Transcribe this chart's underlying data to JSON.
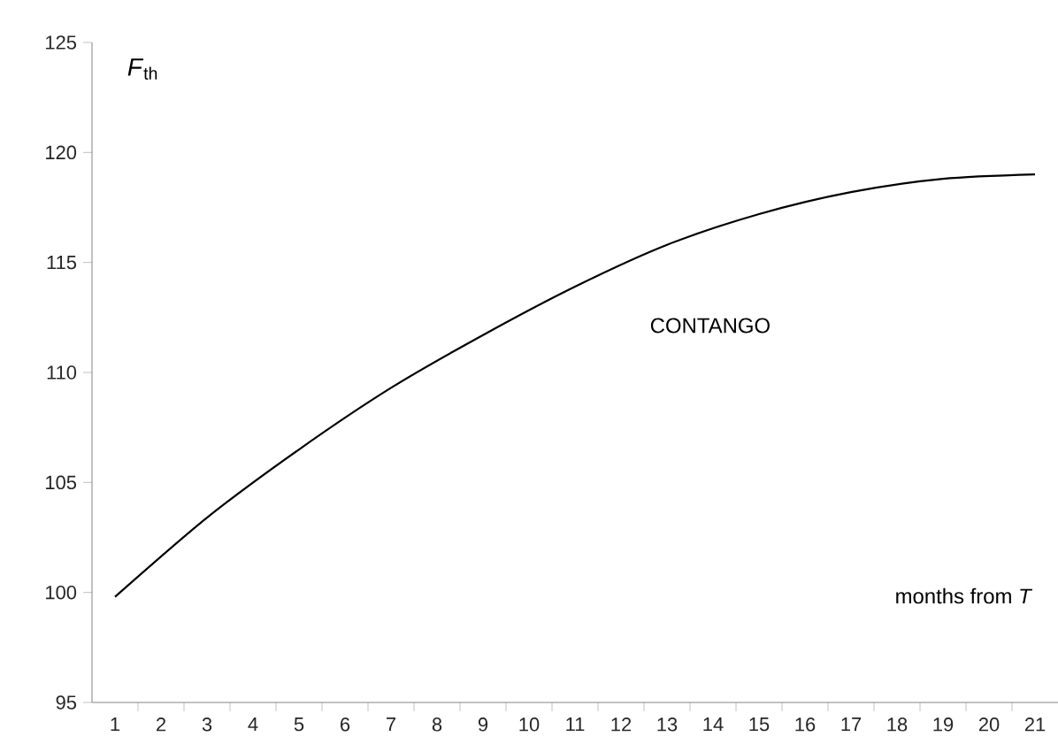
{
  "chart_data": {
    "type": "line",
    "ylabel": "*F*$_{th}$",
    "xlabel": "months from *T*",
    "annotations": [
      "CONTANGO"
    ],
    "x": [
      1,
      3,
      5,
      7,
      9,
      11,
      13,
      15,
      17,
      19,
      21
    ],
    "series": [
      {
        "color": "#000000",
        "values": [
          99.8,
          103.4,
          106.5,
          109.3,
          111.7,
          113.9,
          115.8,
          117.2,
          118.2,
          118.8,
          119.0
        ]
      }
    ],
    "xlim": [
      0.5,
      21.5
    ],
    "xticks": [
      1,
      2,
      3,
      4,
      5,
      6,
      7,
      8,
      9,
      10,
      11,
      12,
      13,
      14,
      15,
      16,
      17,
      18,
      19,
      20,
      21,
      {
        "value": 1.5,
        "label": null
      },
      {
        "value": 2.5,
        "label": null
      },
      {
        "value": 3.5,
        "label": null
      },
      {
        "value": 4.5,
        "label": null
      },
      {
        "value": 5.5,
        "label": null
      },
      {
        "value": 6.5,
        "label": null
      },
      {
        "value": 7.5,
        "label": null
      },
      {
        "value": 8.5,
        "label": null
      },
      {
        "value": 9.5,
        "label": null
      },
      {
        "value": 10.5,
        "label": null
      },
      {
        "value": 11.5,
        "label": null
      },
      {
        "value": 12.5,
        "label": null
      },
      {
        "value": 13.5,
        "label": null
      },
      {
        "value": 14.5,
        "label": null
      },
      {
        "value": 15.5,
        "label": null
      },
      {
        "value": 16.5,
        "label": null
      },
      {
        "value": 17.5,
        "label": null
      },
      {
        "value": 18.5,
        "label": null
      },
      {
        "value": 19.5,
        "label": null
      },
      {
        "value": 20.5,
        "label": null
      }
    ],
    "ylim": [
      95,
      125
    ],
    "yticks": [
      95,
      100,
      105,
      110,
      115,
      120,
      125
    ],
    "grid": false,
    "marker": "none",
    "line_style": "solid"
  }
}
